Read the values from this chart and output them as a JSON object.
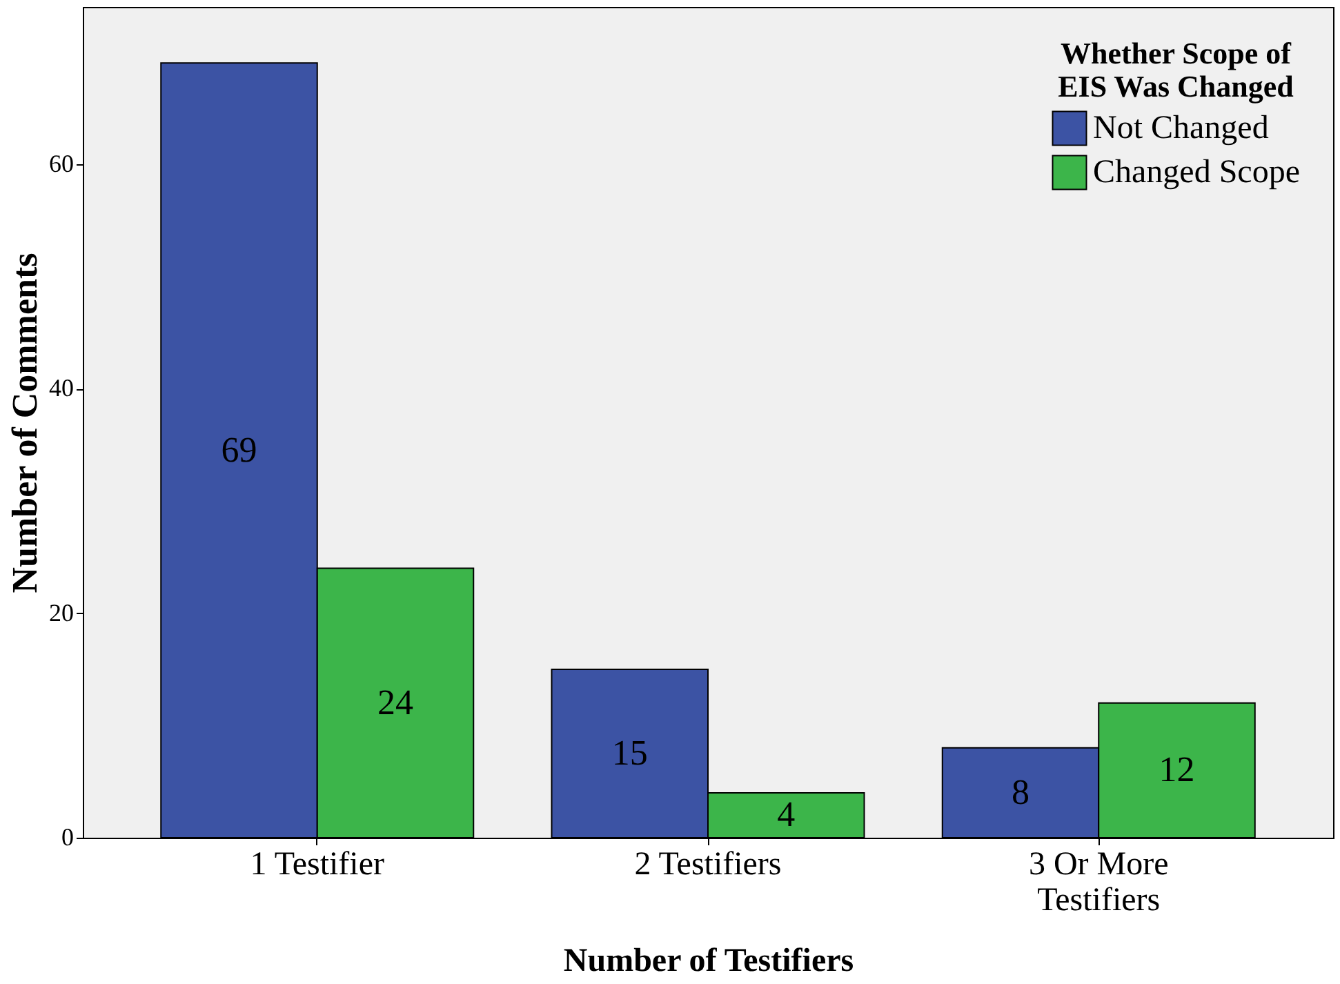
{
  "chart_data": {
    "type": "bar",
    "xlabel": "Number of Testifiers",
    "ylabel": "Number of Comments",
    "legend_title": "Whether Scope of EIS Was Changed",
    "categories": [
      "1 Testifier",
      "2 Testifiers",
      "3 Or More Testifiers"
    ],
    "series": [
      {
        "name": "Not Changed",
        "color": "#3c53a4",
        "values": [
          69,
          15,
          8
        ]
      },
      {
        "name": "Changed Scope",
        "color": "#3cb54a",
        "values": [
          24,
          4,
          12
        ]
      }
    ],
    "ylim": [
      0,
      74
    ],
    "yticks": [
      0,
      20,
      40,
      60
    ],
    "grid": false,
    "legend": "top right",
    "data_labels": true
  }
}
